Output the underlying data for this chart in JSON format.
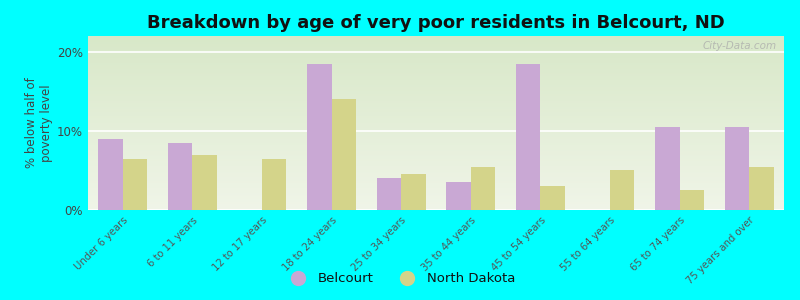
{
  "title": "Breakdown by age of very poor residents in Belcourt, ND",
  "ylabel": "% below half of\npoverty level",
  "categories": [
    "Under 6 years",
    "6 to 11 years",
    "12 to 17 years",
    "18 to 24 years",
    "25 to 34 years",
    "35 to 44 years",
    "45 to 54 years",
    "55 to 64 years",
    "65 to 74 years",
    "75 years and over"
  ],
  "belcourt": [
    9.0,
    8.5,
    0.0,
    18.5,
    4.0,
    3.5,
    18.5,
    0.0,
    10.5,
    10.5
  ],
  "north_dakota": [
    6.5,
    7.0,
    6.5,
    14.0,
    4.5,
    5.5,
    3.0,
    5.0,
    2.5,
    5.5
  ],
  "belcourt_color": "#c9a8d4",
  "nd_color": "#d4d48a",
  "background_color": "#00ffff",
  "plot_bg_grad_top": "#d8e8c8",
  "plot_bg_grad_bottom": "#f0f5e8",
  "ylim": [
    0,
    22
  ],
  "yticks": [
    0,
    10,
    20
  ],
  "ytick_labels": [
    "0%",
    "10%",
    "20%"
  ],
  "title_fontsize": 13,
  "label_fontsize": 8.5,
  "watermark": "City-Data.com"
}
